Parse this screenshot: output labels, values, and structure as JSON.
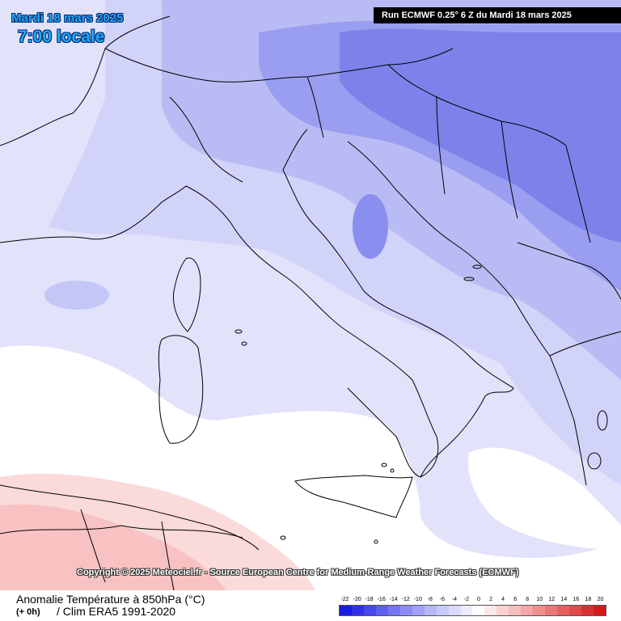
{
  "header": {
    "date": "Mardi 18 mars 2025",
    "time": "7:00 locale",
    "run_info": "Run ECMWF 0.25° 6 Z du Mardi 18 mars 2025"
  },
  "map": {
    "colors": {
      "sea_background": "#e2e2fb",
      "light_anomaly": "#d1d3f8",
      "medium_anomaly": "#b9bcf4",
      "strong_anomaly": "#9a9ef0",
      "deep_anomaly": "#7d82ea",
      "neutral": "#ffffff",
      "warm_light": "#fbdada",
      "warm_medium": "#f8c2c2",
      "border_line": "#000000"
    }
  },
  "copyright": "Copyright © 2025 Meteociel.fr - Source European Centre for Medium-Range Weather Forecasts (ECMWF)",
  "footer": {
    "title": "Anomalie Température à 850hPa (°C)",
    "offset": "(+ 0h)",
    "clim": "/ Clim ERA5 1991-2020",
    "scale_labels": [
      "-22",
      "-20",
      "-18",
      "-16",
      "-14",
      "-12",
      "-10",
      "-8",
      "-6",
      "-4",
      "-2",
      "0",
      "2",
      "4",
      "6",
      "8",
      "10",
      "12",
      "14",
      "16",
      "18",
      "20"
    ],
    "scale_colors": [
      "#1a1ae6",
      "#3030ea",
      "#4747ee",
      "#5e5ef0",
      "#7575f2",
      "#8b8bf4",
      "#a0a0f6",
      "#b5b5f8",
      "#c8c8fa",
      "#dadafc",
      "#ececfe",
      "#ffffff",
      "#fde8e8",
      "#fad2d2",
      "#f7bcbc",
      "#f4a5a5",
      "#f08e8e",
      "#ec7777",
      "#e76060",
      "#e24949",
      "#dc3030",
      "#d61a1a"
    ]
  }
}
